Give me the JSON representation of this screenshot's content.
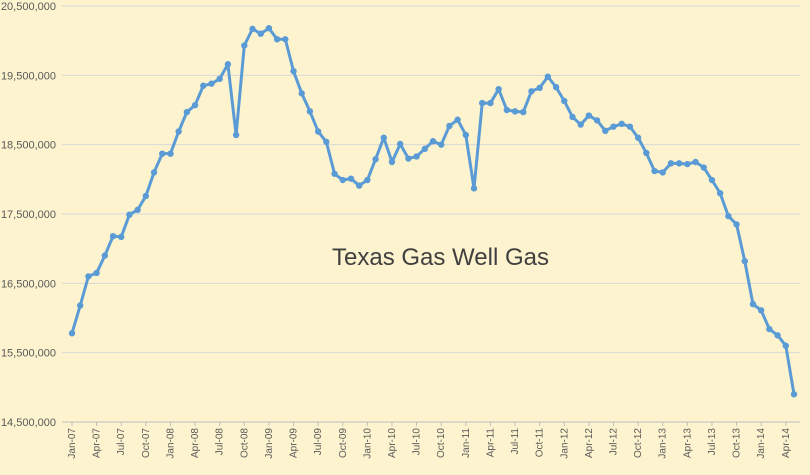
{
  "chart_data": {
    "type": "line",
    "title": "",
    "xlabel": "",
    "ylabel": "",
    "annotation": "Texas Gas Well Gas",
    "ylim": [
      14500000,
      20500000
    ],
    "y_ticks": [
      "14,500,000",
      "15,500,000",
      "16,500,000",
      "17,500,000",
      "18,500,000",
      "19,500,000",
      "20,500,000"
    ],
    "y_tick_values": [
      14500000,
      15500000,
      16500000,
      17500000,
      18500000,
      19500000,
      20500000
    ],
    "x_tick_labels": [
      "Jan-07",
      "Apr-07",
      "Jul-07",
      "Oct-07",
      "Jan-08",
      "Apr-08",
      "Jul-08",
      "Oct-08",
      "Jan-09",
      "Apr-09",
      "Jul-09",
      "Oct-09",
      "Jan-10",
      "Apr-10",
      "Jul-10",
      "Oct-10",
      "Jan-11",
      "Apr-11",
      "Jul-11",
      "Oct-11",
      "Jan-12",
      "Apr-12",
      "Jul-12",
      "Oct-12",
      "Jan-13",
      "Apr-13",
      "Jul-13",
      "Oct-13",
      "Jan-14",
      "Apr-14"
    ],
    "x_start": "Jan-07",
    "x_end": "May-14",
    "grid": true,
    "line_color": "#5b9bd5",
    "background_color": "#fdf4cf",
    "grid_color": "#d9d9d9",
    "series": [
      {
        "values": [
          15780000,
          16180000,
          16600000,
          16650000,
          16900000,
          17180000,
          17170000,
          17490000,
          17560000,
          17760000,
          18100000,
          18370000,
          18370000,
          18690000,
          18970000,
          19070000,
          19350000,
          19380000,
          19450000,
          19660000,
          18640000,
          19930000,
          20170000,
          20100000,
          20180000,
          20020000,
          20020000,
          19560000,
          19240000,
          18980000,
          18690000,
          18540000,
          18080000,
          17990000,
          18010000,
          17910000,
          17990000,
          18290000,
          18600000,
          18250000,
          18510000,
          18300000,
          18330000,
          18440000,
          18550000,
          18500000,
          18770000,
          18860000,
          18640000,
          17870000,
          19100000,
          19100000,
          19300000,
          19000000,
          18980000,
          18970000,
          19270000,
          19320000,
          19480000,
          19330000,
          19130000,
          18900000,
          18790000,
          18920000,
          18850000,
          18700000,
          18760000,
          18800000,
          18760000,
          18600000,
          18380000,
          18120000,
          18100000,
          18230000,
          18230000,
          18220000,
          18250000,
          18170000,
          17990000,
          17800000,
          17470000,
          17350000,
          16820000,
          16200000,
          16110000,
          15840000,
          15750000,
          15600000,
          14900000
        ]
      }
    ]
  }
}
